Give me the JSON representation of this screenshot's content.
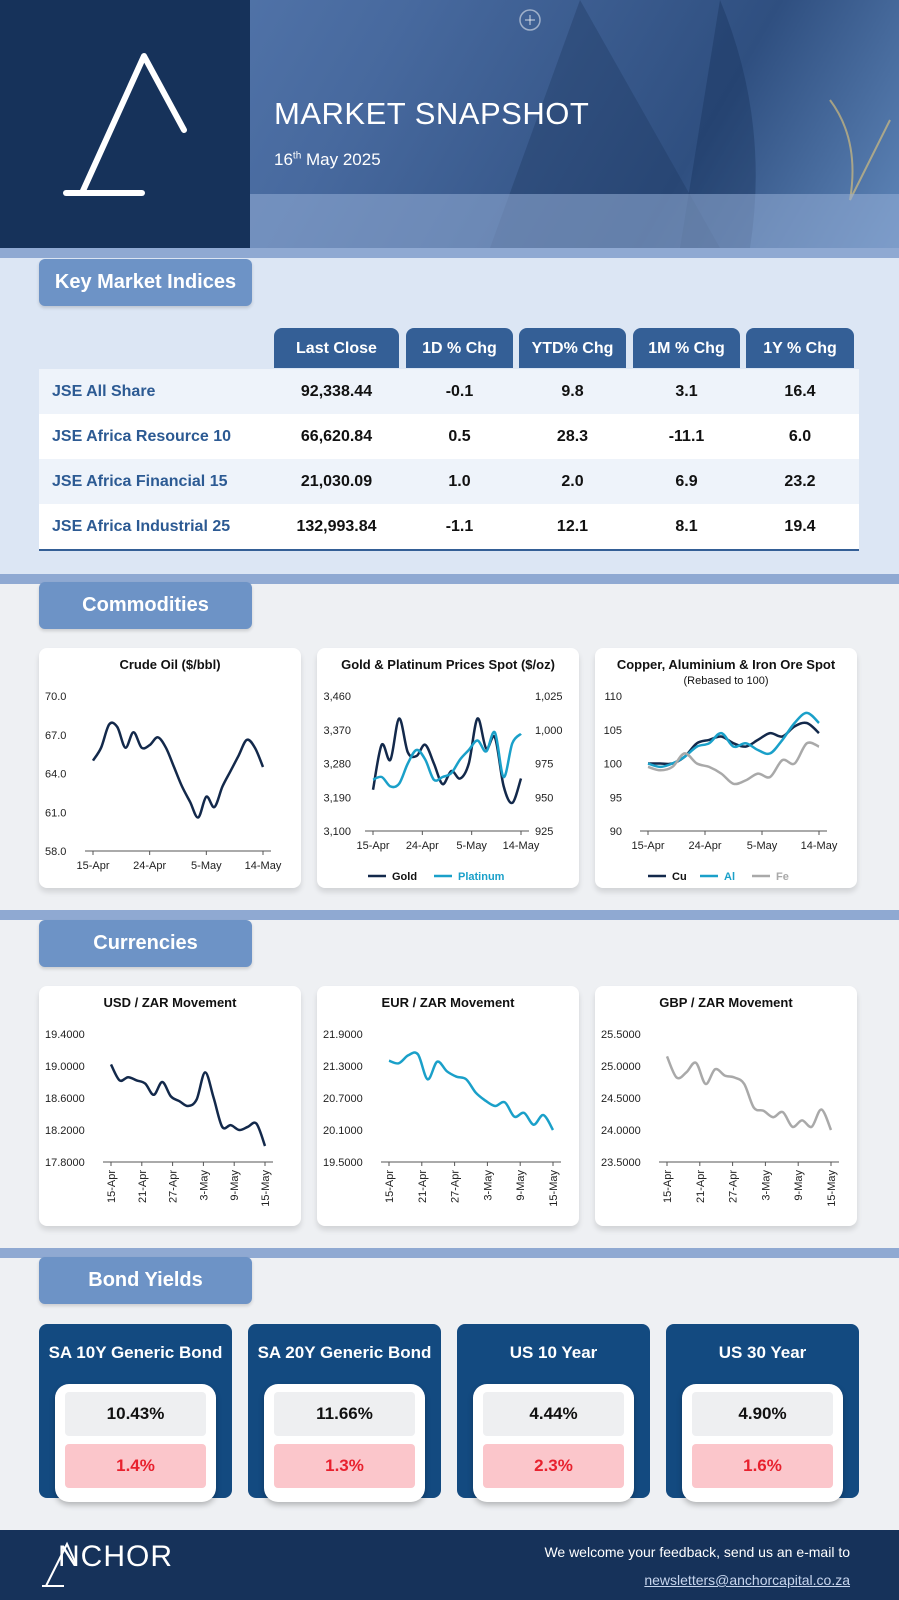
{
  "header": {
    "title": "MARKET SNAPSHOT",
    "date_day": "16",
    "date_suffix": "th",
    "date_rest": " May 2025"
  },
  "sections": {
    "indices": "Key Market Indices",
    "commodities": "Commodities",
    "currencies": "Currencies",
    "bonds": "Bond Yields"
  },
  "indices_table": {
    "columns": [
      "Last Close",
      "1D % Chg",
      "YTD% Chg",
      "1M % Chg",
      "1Y % Chg"
    ],
    "rows": [
      {
        "name": "JSE All Share",
        "last": "92,338.44",
        "d1": "-0.1",
        "ytd": "9.8",
        "m1": "3.1",
        "y1": "16.4"
      },
      {
        "name": "JSE Africa Resource 10",
        "last": "66,620.84",
        "d1": "0.5",
        "ytd": "28.3",
        "m1": "-11.1",
        "y1": "6.0"
      },
      {
        "name": "JSE Africa Financial 15",
        "last": "21,030.09",
        "d1": "1.0",
        "ytd": "2.0",
        "m1": "6.9",
        "y1": "23.2"
      },
      {
        "name": "JSE Africa Industrial 25",
        "last": "132,993.84",
        "d1": "-1.1",
        "ytd": "12.1",
        "m1": "8.1",
        "y1": "19.4"
      }
    ]
  },
  "colors": {
    "navy": "#16325a",
    "section": "#6d93c6",
    "table_header": "#345f96",
    "dark_line": "#13294b",
    "cyan_line": "#1aa0c9",
    "grey_line": "#a9a9a9",
    "negative": "#e8212e"
  },
  "chart_data": [
    {
      "type": "line",
      "title": "Crude Oil ($/bbl)",
      "x_ticks": [
        "15-Apr",
        "24-Apr",
        "5-May",
        "14-May"
      ],
      "ylim": [
        58,
        70
      ],
      "y_ticks": [
        "70.0",
        "67.0",
        "64.0",
        "61.0",
        "58.0"
      ],
      "series": [
        {
          "color": "#13294b",
          "values": [
            65.0,
            66.0,
            67.8,
            67.6,
            66.0,
            67.2,
            66.0,
            66.2,
            66.8,
            66.0,
            64.5,
            63.0,
            61.8,
            60.6,
            62.2,
            61.4,
            63.0,
            64.2,
            65.4,
            66.6,
            66.0,
            64.5
          ]
        }
      ]
    },
    {
      "type": "line",
      "title": "Gold & Platinum Prices Spot ($/oz)",
      "x_ticks": [
        "15-Apr",
        "24-Apr",
        "5-May",
        "14-May"
      ],
      "ylim": [
        3100,
        3460
      ],
      "y_ticks": [
        "3,460",
        "3,370",
        "3,280",
        "3,190",
        "3,100"
      ],
      "y2lim": [
        925,
        1025
      ],
      "y2_ticks": [
        "1,025",
        "1,000",
        "975",
        "950",
        "925"
      ],
      "series": [
        {
          "name": "Gold",
          "color": "#13294b",
          "axis": "left",
          "values": [
            3210,
            3330,
            3290,
            3400,
            3310,
            3300,
            3330,
            3280,
            3225,
            3260,
            3240,
            3280,
            3400,
            3320,
            3350,
            3220,
            3175,
            3240
          ]
        },
        {
          "name": "Platinum",
          "color": "#1aa0c9",
          "axis": "right",
          "values": [
            963,
            965,
            958,
            960,
            975,
            985,
            978,
            963,
            965,
            968,
            978,
            985,
            992,
            984,
            998,
            965,
            990,
            997
          ]
        }
      ]
    },
    {
      "type": "line",
      "title": "Copper, Aluminium & Iron Ore Spot",
      "subtitle": "(Rebased to 100)",
      "x_ticks": [
        "15-Apr",
        "24-Apr",
        "5-May",
        "14-May"
      ],
      "ylim": [
        90,
        110
      ],
      "y_ticks": [
        "110",
        "105",
        "100",
        "95",
        "90"
      ],
      "series": [
        {
          "name": "Cu",
          "color": "#13294b",
          "values": [
            100,
            100,
            100,
            101,
            103,
            103.5,
            104,
            103,
            102.5,
            103.5,
            104.5,
            104,
            105.5,
            106,
            104.5
          ]
        },
        {
          "name": "Al",
          "color": "#1aa0c9",
          "values": [
            100,
            99.5,
            100,
            101,
            102.5,
            103,
            104.5,
            102.5,
            103,
            102,
            101.5,
            103.5,
            106,
            107.5,
            106
          ]
        },
        {
          "name": "Fe",
          "color": "#a9a9a9",
          "values": [
            99.5,
            99,
            99.5,
            101.5,
            100,
            99.5,
            98.5,
            97,
            97.5,
            98.5,
            98,
            100.5,
            100,
            103,
            102.5
          ]
        }
      ]
    },
    {
      "type": "line",
      "title": "USD / ZAR Movement",
      "x_ticks": [
        "15-Apr",
        "21-Apr",
        "27-Apr",
        "3-May",
        "9-May",
        "15-May"
      ],
      "ylim": [
        17.8,
        19.4
      ],
      "y_ticks": [
        "19.4000",
        "19.0000",
        "18.6000",
        "18.2000",
        "17.8000"
      ],
      "series": [
        {
          "color": "#13294b",
          "values": [
            19.02,
            18.82,
            18.86,
            18.82,
            18.78,
            18.64,
            18.8,
            18.62,
            18.56,
            18.5,
            18.58,
            18.92,
            18.6,
            18.24,
            18.26,
            18.2,
            18.24,
            18.28,
            18.0
          ]
        }
      ]
    },
    {
      "type": "line",
      "title": "EUR / ZAR Movement",
      "x_ticks": [
        "15-Apr",
        "21-Apr",
        "27-Apr",
        "3-May",
        "9-May",
        "15-May"
      ],
      "ylim": [
        19.5,
        21.9
      ],
      "y_ticks": [
        "21.9000",
        "21.3000",
        "20.7000",
        "20.1000",
        "19.5000"
      ],
      "series": [
        {
          "color": "#1aa0c9",
          "values": [
            21.4,
            21.35,
            21.5,
            21.52,
            21.05,
            21.38,
            21.2,
            21.1,
            21.05,
            20.8,
            20.65,
            20.55,
            20.62,
            20.35,
            20.42,
            20.2,
            20.38,
            20.1
          ]
        }
      ]
    },
    {
      "type": "line",
      "title": "GBP / ZAR Movement",
      "x_ticks": [
        "15-Apr",
        "21-Apr",
        "27-Apr",
        "3-May",
        "9-May",
        "15-May"
      ],
      "ylim": [
        23.5,
        25.5
      ],
      "y_ticks": [
        "25.5000",
        "25.0000",
        "24.5000",
        "24.0000",
        "23.5000"
      ],
      "series": [
        {
          "color": "#a9a9a9",
          "values": [
            25.15,
            24.82,
            24.9,
            25.05,
            24.72,
            24.95,
            24.85,
            24.82,
            24.72,
            24.35,
            24.3,
            24.2,
            24.28,
            24.05,
            24.15,
            24.05,
            24.32,
            24.0
          ]
        }
      ]
    }
  ],
  "bonds": [
    {
      "title": "SA 10Y Generic Bond",
      "level": "10.43%",
      "change": "1.4%"
    },
    {
      "title": "SA 20Y Generic Bond",
      "level": "11.66%",
      "change": "1.3%"
    },
    {
      "title": "US 10 Year",
      "level": "4.44%",
      "change": "2.3%"
    },
    {
      "title": "US 30 Year",
      "level": "4.90%",
      "change": "1.6%"
    }
  ],
  "footer": {
    "logo_text": "NCHOR",
    "message": "We welcome your feedback, send us an e-mail to",
    "email": "newsletters@anchorcapital.co.za"
  }
}
